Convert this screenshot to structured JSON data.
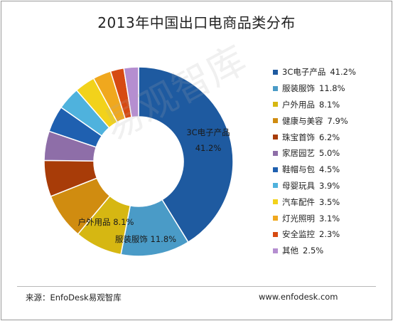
{
  "chart_data": {
    "type": "pie",
    "title": "2013年中国出口电商品类分布",
    "categories": [
      "3C电子产品",
      "服装服饰",
      "户外用品",
      "健康与美容",
      "珠宝首饰",
      "家居园艺",
      "鞋帽与包",
      "母婴玩具",
      "汽车配件",
      "灯光照明",
      "安全监控",
      "其他"
    ],
    "values": [
      41.2,
      11.8,
      8.1,
      7.9,
      6.2,
      5.0,
      4.5,
      3.9,
      3.5,
      3.1,
      2.3,
      2.5
    ],
    "value_labels": [
      "41.2%",
      "11.8%",
      "8.1%",
      "7.9%",
      "6.2%",
      "5.0%",
      "4.5%",
      "3.9%",
      "3.5%",
      "3.1%",
      "2.3%",
      "2.5%"
    ],
    "colors": [
      "#1e5aa0",
      "#4a9bc7",
      "#d6b712",
      "#d08c10",
      "#a83c08",
      "#8e6ea8",
      "#1f60b0",
      "#4fb2dd",
      "#f2d21b",
      "#f0a81e",
      "#d64a12",
      "#b58ed0"
    ],
    "slice_labels": [
      {
        "name": "3C电子产品",
        "value": "41.2%"
      },
      {
        "name": "服装服饰",
        "value": "11.8%"
      },
      {
        "name": "户外用品",
        "value": "8.1%"
      }
    ],
    "legend_position": "right",
    "style": "doughnut"
  },
  "source": "来源：EnfoDesk易观智库",
  "website": "www.enfodesk.com",
  "watermark": "易观智库"
}
